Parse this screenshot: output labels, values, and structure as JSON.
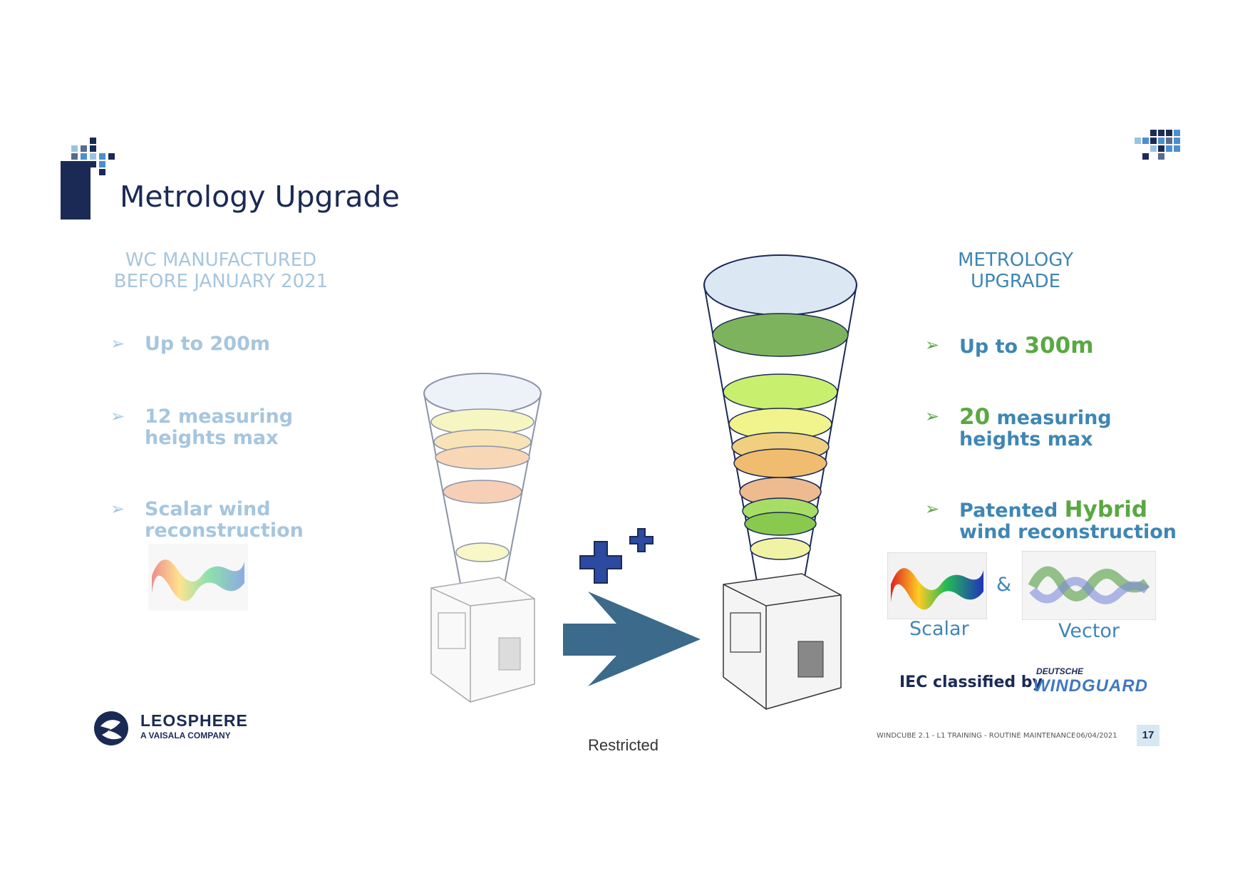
{
  "title": "Metrology Upgrade",
  "left_column": {
    "heading_line1": "WC MANUFACTURED",
    "heading_line2": "BEFORE JANUARY 2021",
    "bullets": [
      {
        "line1": "Up to 200m"
      },
      {
        "line1": "12 measuring",
        "line2": "heights max"
      },
      {
        "line1": "Scalar wind",
        "line2": "reconstruction"
      }
    ]
  },
  "right_column": {
    "heading_line1": "METROLOGY",
    "heading_line2": "UPGRADE",
    "bullet1": {
      "prefix": "Up to ",
      "highlight": "300m"
    },
    "bullet2": {
      "highlight": "20",
      "suffix": " measuring",
      "line2": "heights max"
    },
    "bullet3": {
      "prefix": "Patented ",
      "highlight": "Hybrid",
      "line2": "wind reconstruction"
    },
    "ampersand": "&",
    "scalar_caption": "Scalar",
    "vector_caption": "Vector",
    "iec_text": "IEC classified by",
    "windguard_top": "DEUTSCHE",
    "windguard_main": "WINDGUARD"
  },
  "footer": {
    "company_name": "LEOSPHERE",
    "company_sub": "A VAISALA COMPANY",
    "doc_title": "WINDCUBE 2.1 - L1 TRAINING - ROUTINE MAINTENANCE",
    "date": "06/04/2021",
    "page_number": "17",
    "classification": "Restricted"
  },
  "colors": {
    "navy": "#1b2a55",
    "light_blue": "#a6c6de",
    "mid_blue": "#3f86b4",
    "green": "#5aa843",
    "arrow": "#3b6a8a",
    "plus": "#2b4aa0"
  }
}
